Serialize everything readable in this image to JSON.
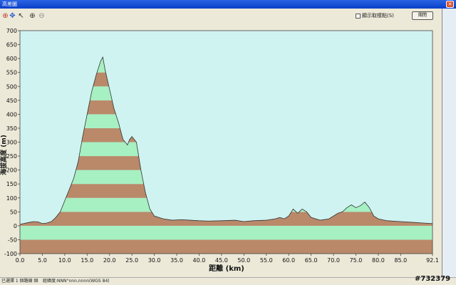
{
  "window": {
    "title": "高差圖",
    "close_glyph": "✕"
  },
  "toolbar": {
    "tools": [
      "crosshair-icon",
      "move-icon",
      "select-icon",
      "zoom-in-icon",
      "zoom-out-icon"
    ],
    "show_sample_label": "顯示取樣點(S)",
    "close_button_label": "關閉"
  },
  "statusbar": {
    "left_text": "已選擇 1 個路線 個",
    "coord_text": "經緯度:NNN°nnn.nnnn(WGS 84)"
  },
  "watermark": "#732379",
  "colors": {
    "plot_bg": "#cff3f1",
    "band_brown": "#b9896a",
    "band_green": "#a6f0c2"
  },
  "chart_data": {
    "type": "area",
    "title": "",
    "xlabel": "距離  (km)",
    "ylabel": "海拔高度 (m)",
    "xlim": [
      0,
      92.1
    ],
    "ylim": [
      -100,
      700
    ],
    "xticks": [
      "0.0",
      "5.0",
      "10.0",
      "15.0",
      "20.0",
      "25.0",
      "30.0",
      "35.0",
      "40.0",
      "45.0",
      "50.0",
      "55.0",
      "60.0",
      "65.0",
      "70.0",
      "75.0",
      "80.0",
      "85.0",
      "92.1"
    ],
    "yticks": [
      "-100",
      "-50",
      "0",
      "50",
      "100",
      "150",
      "200",
      "250",
      "300",
      "350",
      "400",
      "450",
      "500",
      "550",
      "600",
      "650",
      "700"
    ],
    "band_step": 50,
    "grid": false,
    "series": [
      {
        "points": [
          [
            0,
            5
          ],
          [
            2,
            12
          ],
          [
            3,
            15
          ],
          [
            4,
            14
          ],
          [
            5,
            8
          ],
          [
            6,
            10
          ],
          [
            7,
            15
          ],
          [
            8,
            30
          ],
          [
            9,
            50
          ],
          [
            10,
            90
          ],
          [
            11,
            130
          ],
          [
            12,
            170
          ],
          [
            13,
            230
          ],
          [
            14,
            320
          ],
          [
            15,
            400
          ],
          [
            16,
            480
          ],
          [
            17,
            540
          ],
          [
            18,
            590
          ],
          [
            18.5,
            605
          ],
          [
            19,
            560
          ],
          [
            20,
            490
          ],
          [
            21,
            420
          ],
          [
            22,
            370
          ],
          [
            23,
            310
          ],
          [
            24,
            290
          ],
          [
            24.5,
            310
          ],
          [
            25,
            320
          ],
          [
            26,
            300
          ],
          [
            27,
            200
          ],
          [
            28,
            120
          ],
          [
            29,
            60
          ],
          [
            30,
            35
          ],
          [
            32,
            25
          ],
          [
            34,
            20
          ],
          [
            36,
            22
          ],
          [
            38,
            20
          ],
          [
            40,
            18
          ],
          [
            42,
            17
          ],
          [
            45,
            18
          ],
          [
            48,
            20
          ],
          [
            50,
            15
          ],
          [
            52,
            18
          ],
          [
            55,
            20
          ],
          [
            57,
            25
          ],
          [
            58,
            30
          ],
          [
            59,
            25
          ],
          [
            60,
            35
          ],
          [
            61,
            60
          ],
          [
            62,
            45
          ],
          [
            63,
            60
          ],
          [
            64,
            50
          ],
          [
            65,
            30
          ],
          [
            67,
            20
          ],
          [
            69,
            25
          ],
          [
            71,
            45
          ],
          [
            72,
            50
          ],
          [
            73,
            65
          ],
          [
            74,
            75
          ],
          [
            75,
            65
          ],
          [
            76,
            72
          ],
          [
            77,
            85
          ],
          [
            78,
            65
          ],
          [
            79,
            35
          ],
          [
            80,
            25
          ],
          [
            82,
            18
          ],
          [
            85,
            15
          ],
          [
            88,
            12
          ],
          [
            90,
            10
          ],
          [
            92.1,
            8
          ]
        ]
      }
    ]
  }
}
